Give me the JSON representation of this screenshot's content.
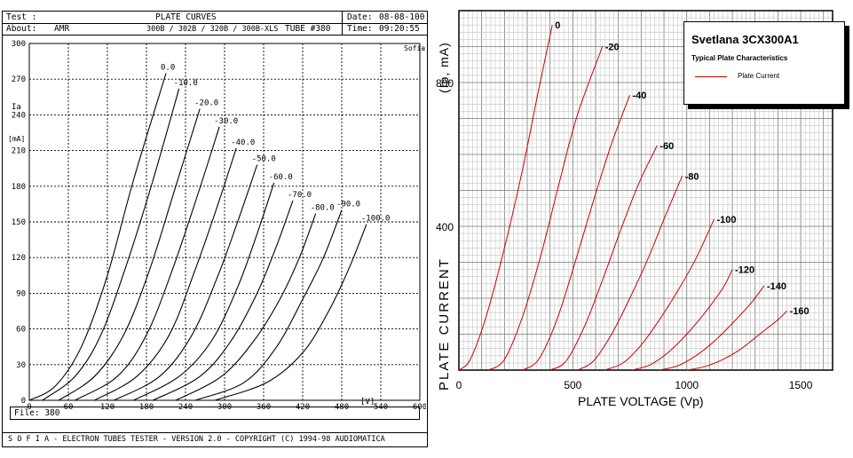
{
  "left_chart": {
    "header": {
      "test_label": "Test :",
      "title": "PLATE CURVES",
      "date_label": "Date:",
      "date_value": "08-08-100",
      "about_label": "About:",
      "about_value": "AMR",
      "tube_types": "300B / 302B / 320B / 300B-XLS",
      "tube_number": "TUBE #380",
      "time_label": "Time:",
      "time_value": "09:20:55"
    },
    "corner_label": "Sofia",
    "y_label_top": "Ia",
    "y_label_unit": "[mA]",
    "x_unit_label": "[V]",
    "file_label": "File: 380",
    "footer_text": "S O F I A  -  ELECTRON TUBES TESTER  -  VERSION 2.0  -  COPYRIGHT (C) 1994-98 AUDIOMATICA"
  },
  "right_chart": {
    "y_axis_label": "PLATE CURRENT",
    "y_axis_unit": "(Ip, mA)",
    "x_axis_label": "PLATE VOLTAGE (Vp)",
    "legend": {
      "title": "Svetlana 3CX300A1",
      "subtitle": "Typical Plate Characteristics",
      "series_label": "Plate Current"
    }
  },
  "chart_data": [
    {
      "type": "line",
      "title": "PLATE CURVES",
      "xlabel": "[V]",
      "ylabel": "Ia [mA]",
      "xlim": [
        0,
        600
      ],
      "ylim": [
        0,
        300
      ],
      "xticks": [
        0,
        60,
        120,
        180,
        240,
        300,
        360,
        420,
        480,
        540,
        600
      ],
      "yticks": [
        0,
        30,
        60,
        90,
        120,
        150,
        180,
        210,
        240,
        270,
        300
      ],
      "grid": true,
      "series": [
        {
          "name": "0.0",
          "x": [
            0,
            40,
            80,
            120,
            160,
            210
          ],
          "values": [
            0,
            12,
            45,
            105,
            185,
            275
          ]
        },
        {
          "name": "-10.0",
          "x": [
            20,
            70,
            110,
            150,
            190,
            230
          ],
          "values": [
            0,
            20,
            55,
            115,
            185,
            262
          ]
        },
        {
          "name": "-20.0",
          "x": [
            45,
            100,
            145,
            185,
            225,
            262
          ],
          "values": [
            0,
            20,
            55,
            110,
            180,
            245
          ]
        },
        {
          "name": "-30.0",
          "x": [
            70,
            135,
            180,
            220,
            260,
            292
          ],
          "values": [
            0,
            20,
            55,
            110,
            175,
            230
          ]
        },
        {
          "name": "-40.0",
          "x": [
            100,
            165,
            215,
            255,
            290,
            318
          ],
          "values": [
            0,
            20,
            55,
            110,
            165,
            212
          ]
        },
        {
          "name": "-50.0",
          "x": [
            130,
            200,
            250,
            290,
            320,
            350
          ],
          "values": [
            0,
            20,
            55,
            105,
            150,
            198
          ]
        },
        {
          "name": "-60.0",
          "x": [
            160,
            230,
            280,
            320,
            350,
            376
          ],
          "values": [
            0,
            20,
            50,
            95,
            140,
            183
          ]
        },
        {
          "name": "-70.0",
          "x": [
            190,
            262,
            310,
            350,
            380,
            405
          ],
          "values": [
            0,
            20,
            50,
            90,
            130,
            168
          ]
        },
        {
          "name": "-80.0",
          "x": [
            225,
            295,
            345,
            385,
            415,
            440
          ],
          "values": [
            0,
            20,
            50,
            85,
            120,
            157
          ]
        },
        {
          "name": "-90.0",
          "x": [
            255,
            330,
            380,
            420,
            452,
            480
          ],
          "values": [
            0,
            15,
            45,
            85,
            120,
            160
          ]
        },
        {
          "name": "-100.0",
          "x": [
            285,
            365,
            420,
            460,
            492,
            518
          ],
          "values": [
            0,
            15,
            40,
            75,
            112,
            148
          ]
        }
      ]
    },
    {
      "type": "line",
      "title": "Svetlana 3CX300A1",
      "subtitle": "Typical Plate Characteristics",
      "xlabel": "PLATE VOLTAGE (Vp)",
      "ylabel": "PLATE CURRENT (Ip, mA)",
      "xlim": [
        0,
        1640
      ],
      "ylim": [
        0,
        1000
      ],
      "xticks": [
        0,
        500,
        1000,
        1500
      ],
      "yticks": [
        400,
        800
      ],
      "grid": true,
      "legend": "top-right",
      "color": "#cc0000",
      "series": [
        {
          "name": "0",
          "x": [
            0,
            50,
            120,
            200,
            280,
            350,
            410
          ],
          "values": [
            0,
            30,
            150,
            340,
            560,
            780,
            960
          ]
        },
        {
          "name": "-20",
          "x": [
            130,
            200,
            280,
            360,
            440,
            520,
            630
          ],
          "values": [
            0,
            30,
            150,
            320,
            520,
            710,
            900
          ]
        },
        {
          "name": "-40",
          "x": [
            280,
            350,
            430,
            510,
            590,
            670,
            750
          ],
          "values": [
            0,
            30,
            140,
            300,
            470,
            630,
            765
          ]
        },
        {
          "name": "-60",
          "x": [
            400,
            470,
            550,
            630,
            710,
            790,
            870
          ],
          "values": [
            0,
            25,
            120,
            250,
            390,
            520,
            625
          ]
        },
        {
          "name": "-80",
          "x": [
            520,
            590,
            670,
            750,
            830,
            900,
            980
          ],
          "values": [
            0,
            25,
            100,
            200,
            310,
            420,
            540
          ]
        },
        {
          "name": "-100",
          "x": [
            640,
            720,
            800,
            880,
            960,
            1040,
            1120
          ],
          "values": [
            0,
            20,
            70,
            140,
            220,
            310,
            420
          ]
        },
        {
          "name": "-120",
          "x": [
            760,
            840,
            920,
            1000,
            1080,
            1160,
            1200
          ],
          "values": [
            0,
            15,
            50,
            100,
            160,
            230,
            280
          ]
        },
        {
          "name": "-140",
          "x": [
            880,
            960,
            1040,
            1120,
            1200,
            1280,
            1340
          ],
          "values": [
            0,
            12,
            40,
            80,
            130,
            185,
            235
          ]
        },
        {
          "name": "-160",
          "x": [
            1000,
            1080,
            1160,
            1240,
            1320,
            1400,
            1440
          ],
          "values": [
            0,
            10,
            30,
            60,
            100,
            140,
            165
          ]
        }
      ]
    }
  ]
}
